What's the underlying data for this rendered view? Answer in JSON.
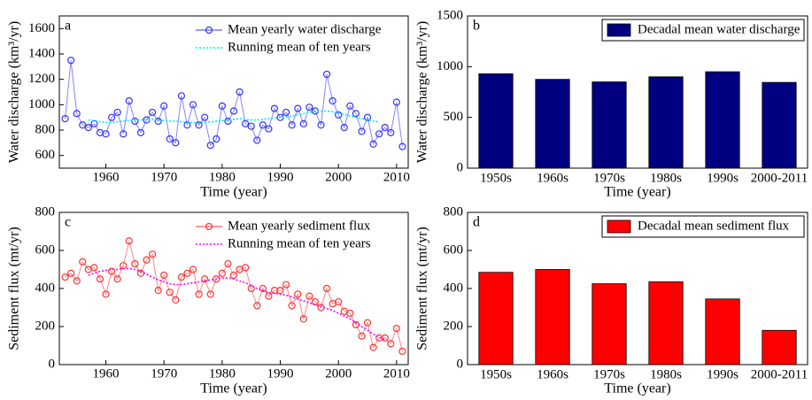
{
  "chart_data": [
    {
      "type": "line",
      "panel_label": "a",
      "xlabel": "Time (year)",
      "ylabel": "Water discharge (km³/yr)",
      "xlim": [
        1952,
        2012
      ],
      "xticks": [
        1960,
        1970,
        1980,
        1990,
        2000,
        2010
      ],
      "ylim": [
        500,
        1700
      ],
      "yticks": [
        600,
        800,
        1000,
        1200,
        1400,
        1600
      ],
      "legend": "upper right",
      "x": [
        1953,
        1954,
        1955,
        1956,
        1957,
        1958,
        1959,
        1960,
        1961,
        1962,
        1963,
        1964,
        1965,
        1966,
        1967,
        1968,
        1969,
        1970,
        1971,
        1972,
        1973,
        1974,
        1975,
        1976,
        1977,
        1978,
        1979,
        1980,
        1981,
        1982,
        1983,
        1984,
        1985,
        1986,
        1987,
        1988,
        1989,
        1990,
        1991,
        1992,
        1993,
        1994,
        1995,
        1996,
        1997,
        1998,
        1999,
        2000,
        2001,
        2002,
        2003,
        2004,
        2005,
        2006,
        2007,
        2008,
        2009,
        2010,
        2011
      ],
      "series": [
        {
          "name": "Mean yearly water discharge",
          "color": "#3333ff",
          "marker": "circle",
          "linestyle": "solid",
          "values": [
            890,
            1350,
            930,
            840,
            820,
            850,
            780,
            770,
            900,
            940,
            770,
            1030,
            870,
            780,
            880,
            940,
            870,
            990,
            730,
            700,
            1070,
            840,
            1000,
            840,
            900,
            680,
            730,
            990,
            870,
            950,
            1100,
            850,
            830,
            720,
            840,
            810,
            970,
            900,
            940,
            840,
            970,
            850,
            980,
            950,
            840,
            1240,
            1030,
            920,
            820,
            990,
            930,
            790,
            900,
            690,
            770,
            820,
            780,
            1020,
            670
          ]
        },
        {
          "name": "Running mean of ten years",
          "color": "#00e5ff",
          "marker": "none",
          "linestyle": "dotted",
          "values": [
            null,
            null,
            null,
            null,
            880,
            875,
            865,
            860,
            860,
            865,
            870,
            875,
            880,
            880,
            885,
            885,
            880,
            875,
            870,
            870,
            865,
            860,
            860,
            855,
            860,
            865,
            870,
            875,
            880,
            885,
            890,
            885,
            880,
            880,
            885,
            890,
            895,
            900,
            905,
            910,
            920,
            930,
            940,
            945,
            950,
            950,
            945,
            935,
            925,
            910,
            900,
            890,
            880,
            870,
            865,
            null,
            null,
            null,
            null
          ]
        }
      ]
    },
    {
      "type": "bar",
      "panel_label": "b",
      "xlabel": "Time (year)",
      "ylabel": "Water discharge (km³/yr)",
      "categories": [
        "1950s",
        "1960s",
        "1970s",
        "1980s",
        "1990s",
        "2000-2011"
      ],
      "ylim": [
        0,
        1500
      ],
      "yticks": [
        0,
        500,
        1000,
        1500
      ],
      "legend": "upper right",
      "legend_box": true,
      "series": [
        {
          "name": "Decadal mean water discharge",
          "color": "#000080",
          "values": [
            930,
            875,
            850,
            900,
            950,
            845
          ]
        }
      ]
    },
    {
      "type": "line",
      "panel_label": "c",
      "xlabel": "Time (year)",
      "ylabel": "Sediment flux (mt/yr)",
      "xlim": [
        1952,
        2012
      ],
      "xticks": [
        1960,
        1970,
        1980,
        1990,
        2000,
        2010
      ],
      "ylim": [
        0,
        800
      ],
      "yticks": [
        0,
        200,
        400,
        600,
        800
      ],
      "legend": "upper right",
      "x": [
        1953,
        1954,
        1955,
        1956,
        1957,
        1958,
        1959,
        1960,
        1961,
        1962,
        1963,
        1964,
        1965,
        1966,
        1967,
        1968,
        1969,
        1970,
        1971,
        1972,
        1973,
        1974,
        1975,
        1976,
        1977,
        1978,
        1979,
        1980,
        1981,
        1982,
        1983,
        1984,
        1985,
        1986,
        1987,
        1988,
        1989,
        1990,
        1991,
        1992,
        1993,
        1994,
        1995,
        1996,
        1997,
        1998,
        1999,
        2000,
        2001,
        2002,
        2003,
        2004,
        2005,
        2006,
        2007,
        2008,
        2009,
        2010,
        2011
      ],
      "series": [
        {
          "name": "Mean yearly sediment flux",
          "color": "#ff3333",
          "marker": "circle",
          "linestyle": "solid",
          "values": [
            460,
            480,
            440,
            540,
            500,
            510,
            450,
            370,
            490,
            450,
            520,
            650,
            530,
            480,
            550,
            580,
            390,
            470,
            380,
            340,
            460,
            480,
            500,
            370,
            450,
            370,
            450,
            480,
            530,
            470,
            500,
            510,
            400,
            310,
            400,
            360,
            390,
            390,
            420,
            310,
            370,
            240,
            360,
            330,
            300,
            400,
            320,
            330,
            280,
            270,
            210,
            150,
            220,
            90,
            140,
            140,
            110,
            190,
            70
          ]
        },
        {
          "name": "Running mean of ten years",
          "color": "#ff00ff",
          "marker": "none",
          "linestyle": "dotted",
          "values": [
            null,
            null,
            null,
            null,
            470,
            480,
            490,
            495,
            500,
            500,
            505,
            505,
            500,
            490,
            475,
            460,
            445,
            435,
            425,
            420,
            420,
            425,
            430,
            435,
            440,
            445,
            450,
            455,
            455,
            450,
            440,
            430,
            415,
            400,
            390,
            380,
            375,
            370,
            365,
            355,
            345,
            335,
            325,
            315,
            305,
            295,
            285,
            270,
            255,
            240,
            220,
            200,
            180,
            160,
            145,
            130,
            null,
            null,
            null
          ]
        }
      ]
    },
    {
      "type": "bar",
      "panel_label": "d",
      "xlabel": "Time (year)",
      "ylabel": "Sediment flux (mt/yr)",
      "categories": [
        "1950s",
        "1960s",
        "1970s",
        "1980s",
        "1990s",
        "2000-2011"
      ],
      "ylim": [
        0,
        800
      ],
      "yticks": [
        0,
        200,
        400,
        600,
        800
      ],
      "legend": "upper right",
      "legend_box": true,
      "series": [
        {
          "name": "Decadal mean sediment flux",
          "color": "#ff0000",
          "values": [
            485,
            500,
            425,
            435,
            345,
            180
          ]
        }
      ]
    }
  ]
}
